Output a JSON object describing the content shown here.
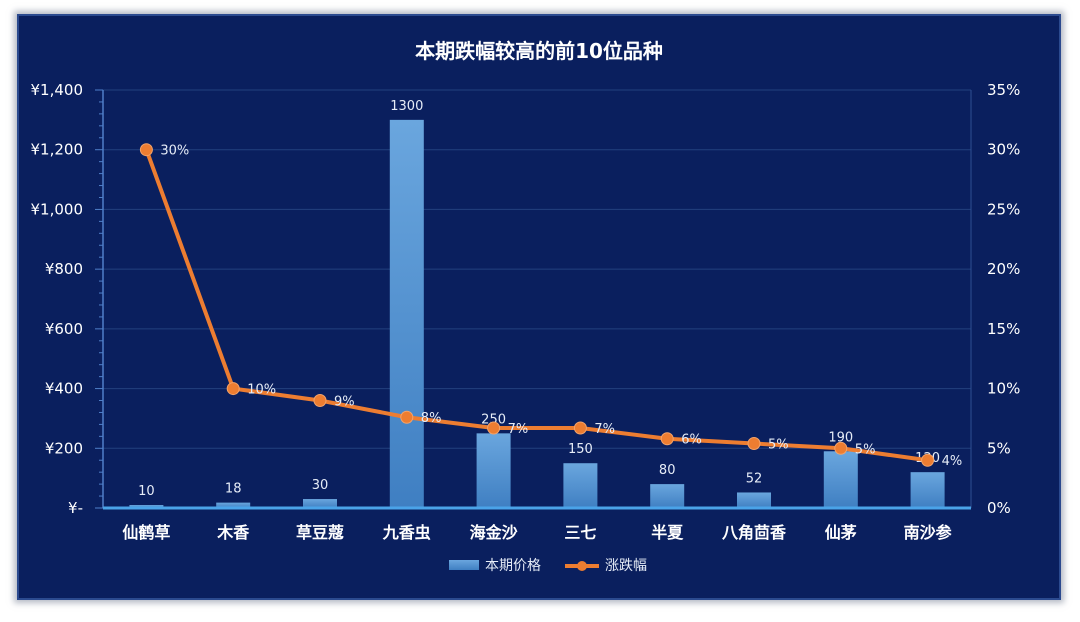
{
  "chart_data": {
    "type": "bar+line",
    "title": "本期跌幅较高的前10位品种",
    "categories": [
      "仙鹤草",
      "木香",
      "草豆蔻",
      "九香虫",
      "海金沙",
      "三七",
      "半夏",
      "八角茴香",
      "仙茅",
      "南沙参"
    ],
    "series": [
      {
        "name": "本期价格",
        "type": "bar",
        "axis": "left",
        "values": [
          10,
          18,
          30,
          1300,
          250,
          150,
          80,
          52,
          190,
          120
        ],
        "labels": [
          "10",
          "18",
          "30",
          "1300",
          "250",
          "150",
          "80",
          "52",
          "190",
          "120"
        ],
        "color": "#5b9bd5"
      },
      {
        "name": "涨跌幅",
        "type": "line",
        "axis": "right",
        "values": [
          30,
          10,
          9,
          7.6,
          6.7,
          6.7,
          5.8,
          5.4,
          5,
          4
        ],
        "labels": [
          "30%",
          "10%",
          "9%",
          "8%",
          "7%",
          "7%",
          "6%",
          "5%",
          "5%",
          "4%"
        ],
        "color": "#ed7d31"
      }
    ],
    "y_left": {
      "min": 0,
      "max": 1400,
      "ticks": [
        0,
        200,
        400,
        600,
        800,
        1000,
        1200,
        1400
      ],
      "tick_labels": [
        "¥-",
        "¥200",
        "¥400",
        "¥600",
        "¥800",
        "¥1,000",
        "¥1,200",
        "¥1,400"
      ]
    },
    "y_right": {
      "min": 0,
      "max": 35,
      "ticks": [
        0,
        5,
        10,
        15,
        20,
        25,
        30,
        35
      ],
      "tick_labels": [
        "0%",
        "5%",
        "10%",
        "15%",
        "20%",
        "25%",
        "30%",
        "35%"
      ]
    },
    "grid": true,
    "legend_position": "bottom"
  }
}
